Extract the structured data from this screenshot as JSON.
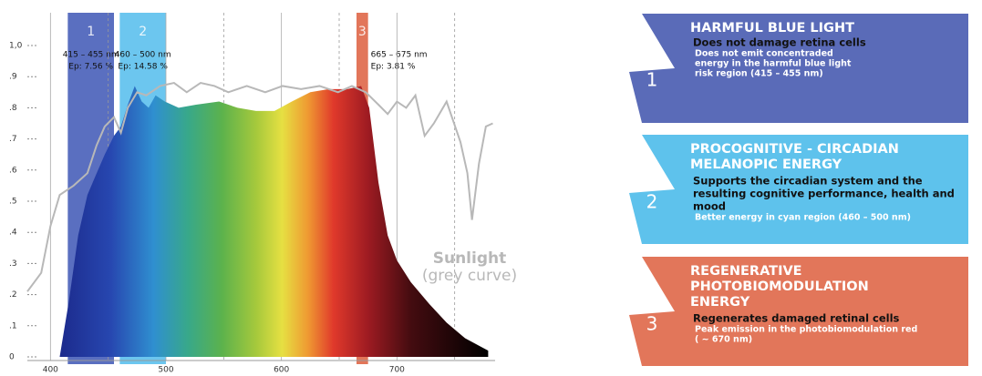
{
  "chart_data": {
    "type": "area",
    "xlim": [
      380,
      785
    ],
    "xticks": [
      400,
      500,
      600,
      700
    ],
    "minor_xticks": [
      450,
      550,
      650,
      750
    ],
    "ylim": [
      0,
      1
    ],
    "yticks": [
      {
        "value": 0,
        "label": "0"
      },
      {
        "value": 0.1,
        "label": ".1"
      },
      {
        "value": 0.2,
        "label": ".2"
      },
      {
        "value": 0.3,
        "label": ".3"
      },
      {
        "value": 0.4,
        "label": ".4"
      },
      {
        "value": 0.5,
        "label": ".5"
      },
      {
        "value": 0.6,
        "label": ".6"
      },
      {
        "value": 0.7,
        "label": ".7"
      },
      {
        "value": 0.8,
        "label": ".8"
      },
      {
        "value": 0.9,
        "label": ".9"
      },
      {
        "value": 1,
        "label": "1,0"
      }
    ],
    "series": [
      {
        "x": [
          408,
          416,
          424,
          432,
          440,
          447,
          455,
          461,
          467,
          473,
          479,
          485,
          491,
          499,
          511,
          526,
          546,
          562,
          578,
          594,
          609,
          625,
          641,
          657,
          669,
          676,
          684,
          692,
          700,
          712,
          728,
          743,
          759,
          779,
          779
        ],
        "values": [
          0,
          0.18,
          0.39,
          0.52,
          0.59,
          0.65,
          0.71,
          0.74,
          0.81,
          0.87,
          0.82,
          0.8,
          0.84,
          0.82,
          0.8,
          0.81,
          0.82,
          0.8,
          0.79,
          0.79,
          0.82,
          0.85,
          0.86,
          0.86,
          0.87,
          0.8,
          0.56,
          0.39,
          0.31,
          0.24,
          0.17,
          0.11,
          0.06,
          0.02,
          0
        ]
      },
      {
        "name": "Sunlight",
        "label_note": "(grey curve)",
        "color": "#b8b8b8",
        "x": [
          380,
          392,
          400,
          408,
          420,
          432,
          440,
          447,
          455,
          461,
          467,
          475,
          483,
          495,
          507,
          518,
          530,
          542,
          554,
          570,
          586,
          601,
          617,
          633,
          649,
          661,
          673,
          684,
          692,
          700,
          708,
          716,
          724,
          732,
          743,
          755,
          761,
          765,
          771,
          777,
          783
        ],
        "values": [
          0.21,
          0.27,
          0.42,
          0.52,
          0.55,
          0.59,
          0.68,
          0.74,
          0.77,
          0.72,
          0.8,
          0.85,
          0.84,
          0.87,
          0.88,
          0.85,
          0.88,
          0.87,
          0.85,
          0.87,
          0.85,
          0.87,
          0.86,
          0.87,
          0.85,
          0.87,
          0.85,
          0.81,
          0.78,
          0.82,
          0.8,
          0.84,
          0.71,
          0.75,
          0.82,
          0.69,
          0.59,
          0.44,
          0.62,
          0.74,
          0.75
        ]
      }
    ],
    "bands": [
      {
        "number": "1",
        "range": [
          415,
          455
        ],
        "range_label": "415 – 455 nm",
        "ep": "Ep: 7.56 %",
        "color": "#5a6fc0"
      },
      {
        "number": "2",
        "range": [
          460,
          500
        ],
        "range_label": "460 – 500 nm",
        "ep": "Ep: 14.58 %",
        "color": "#6cc6ef"
      },
      {
        "number": "3",
        "range": [
          665,
          675
        ],
        "range_label": "665 – 675 nm",
        "ep": "Ep: 3.81 %",
        "color": "#e2765a"
      }
    ]
  },
  "panels": [
    {
      "number": "1",
      "color": "#5a6bb8",
      "title": [
        "HARMFUL BLUE LIGHT"
      ],
      "headline": [
        "Does not damage retina cells"
      ],
      "note": [
        "Does not emit concentraded",
        "energy in the harmful blue light",
        "risk region (415 – 455 nm)"
      ]
    },
    {
      "number": "2",
      "color": "#5ec2ec",
      "title": [
        "PROCOGNITIVE - CIRCADIAN",
        "MELANOPIC ENERGY"
      ],
      "headline": [
        "Supports the circadian system and the",
        "resulting cognitive performance, health and",
        "mood"
      ],
      "note": [
        "Better energy in cyan region (460 – 500 nm)"
      ]
    },
    {
      "number": "3",
      "color": "#e2765a",
      "title": [
        "REGENERATIVE",
        "PHOTOBIOMODULATION",
        "ENERGY"
      ],
      "headline": [
        "Regenerates damaged retinal cells"
      ],
      "note": [
        "Peak emission in the photobiomodulation red",
        "( ~ 670 nm)"
      ]
    }
  ]
}
